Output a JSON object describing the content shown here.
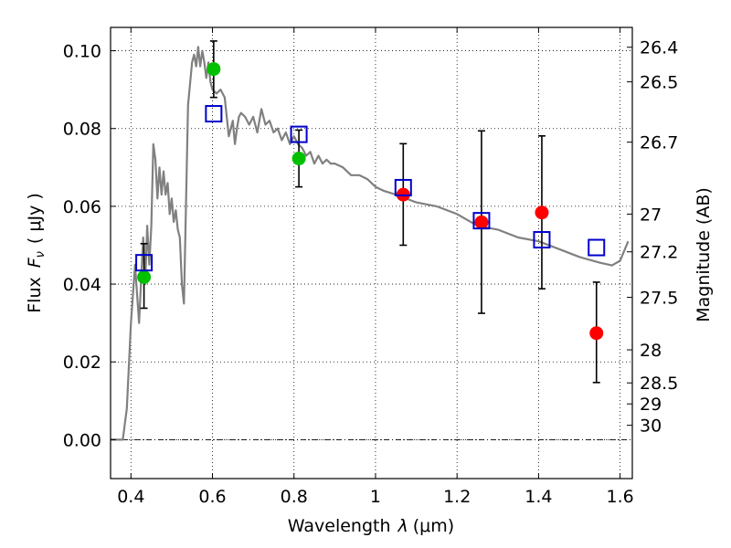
{
  "chart_data": {
    "type": "scatter",
    "xlabel": "Wavelength",
    "xlabel_symbol": "λ",
    "xlabel_unit": "(μm)",
    "ylabel": "Flux",
    "ylabel_symbol": "F",
    "ylabel_subscript": "ν",
    "ylabel_unit": "( μJy )",
    "y2label": "Magnitude (AB)",
    "xlim": [
      0.35,
      1.63
    ],
    "ylim": [
      -0.01,
      0.106
    ],
    "grid": true,
    "x_ticks": [
      0.4,
      0.6,
      0.8,
      1.0,
      1.2,
      1.4,
      1.6
    ],
    "x_tick_labels": [
      "0.4",
      "0.6",
      "0.8",
      "1",
      "1.2",
      "1.4",
      "1.6"
    ],
    "y_ticks": [
      0.0,
      0.02,
      0.04,
      0.06,
      0.08,
      0.1
    ],
    "y_tick_labels": [
      "0.00",
      "0.02",
      "0.04",
      "0.06",
      "0.08",
      "0.10"
    ],
    "y2_ticks": [
      {
        "label": "26.4",
        "flux": 0.1009
      },
      {
        "label": "26.5",
        "flux": 0.092
      },
      {
        "label": "26.7",
        "flux": 0.0765
      },
      {
        "label": "27",
        "flux": 0.058
      },
      {
        "label": "27.2",
        "flux": 0.0483
      },
      {
        "label": "27.5",
        "flux": 0.0366
      },
      {
        "label": "28",
        "flux": 0.0231
      },
      {
        "label": "28.5",
        "flux": 0.0146
      },
      {
        "label": "29",
        "flux": 0.0092
      },
      {
        "label": "30",
        "flux": 0.0037
      }
    ],
    "zero_line": 0.0,
    "model_spectrum": {
      "color": "#808080",
      "x": [
        0.35,
        0.38,
        0.39,
        0.4,
        0.41,
        0.42,
        0.43,
        0.435,
        0.44,
        0.445,
        0.45,
        0.455,
        0.46,
        0.465,
        0.47,
        0.475,
        0.48,
        0.485,
        0.49,
        0.495,
        0.5,
        0.505,
        0.51,
        0.515,
        0.52,
        0.525,
        0.53,
        0.54,
        0.55,
        0.555,
        0.56,
        0.565,
        0.57,
        0.575,
        0.58,
        0.585,
        0.59,
        0.595,
        0.6,
        0.61,
        0.62,
        0.63,
        0.64,
        0.65,
        0.655,
        0.66,
        0.665,
        0.67,
        0.68,
        0.69,
        0.7,
        0.71,
        0.72,
        0.73,
        0.74,
        0.75,
        0.76,
        0.77,
        0.78,
        0.79,
        0.8,
        0.81,
        0.82,
        0.83,
        0.84,
        0.85,
        0.86,
        0.87,
        0.88,
        0.89,
        0.9,
        0.92,
        0.94,
        0.96,
        0.98,
        1.0,
        1.02,
        1.05,
        1.1,
        1.15,
        1.2,
        1.25,
        1.3,
        1.35,
        1.4,
        1.45,
        1.5,
        1.55,
        1.58,
        1.6,
        1.62
      ],
      "y": [
        0.0,
        0.0,
        0.008,
        0.03,
        0.045,
        0.03,
        0.052,
        0.04,
        0.055,
        0.045,
        0.055,
        0.076,
        0.072,
        0.062,
        0.07,
        0.063,
        0.069,
        0.063,
        0.066,
        0.058,
        0.062,
        0.056,
        0.059,
        0.054,
        0.052,
        0.04,
        0.035,
        0.086,
        0.097,
        0.099,
        0.096,
        0.101,
        0.096,
        0.1,
        0.097,
        0.093,
        0.097,
        0.092,
        0.09,
        0.089,
        0.09,
        0.088,
        0.078,
        0.082,
        0.076,
        0.08,
        0.083,
        0.084,
        0.083,
        0.081,
        0.083,
        0.079,
        0.085,
        0.081,
        0.082,
        0.079,
        0.08,
        0.077,
        0.079,
        0.076,
        0.078,
        0.076,
        0.075,
        0.073,
        0.074,
        0.071,
        0.073,
        0.071,
        0.072,
        0.071,
        0.071,
        0.07,
        0.068,
        0.068,
        0.067,
        0.065,
        0.064,
        0.063,
        0.061,
        0.06,
        0.058,
        0.055,
        0.054,
        0.052,
        0.051,
        0.049,
        0.047,
        0.0455,
        0.0448,
        0.046,
        0.051
      ]
    },
    "series": [
      {
        "name": "",
        "marker": "circle",
        "color": "#00c000",
        "x": [
          0.432,
          0.603,
          0.812
        ],
        "y": [
          0.0418,
          0.0953,
          0.0723
        ],
        "yerr_low": [
          0.0338,
          0.088,
          0.065
        ],
        "yerr_high": [
          0.0504,
          0.1025,
          0.0796
        ]
      },
      {
        "name": "",
        "marker": "circle",
        "color": "#ff0000",
        "x": [
          1.068,
          1.26,
          1.408,
          1.542
        ],
        "y": [
          0.063,
          0.0559,
          0.0584,
          0.0274
        ],
        "yerr_low": [
          0.05,
          0.0325,
          0.0388,
          0.0147
        ],
        "yerr_high": [
          0.0761,
          0.0794,
          0.0781,
          0.0405
        ]
      },
      {
        "name": "",
        "marker": "square-open",
        "color": "#0000cc",
        "x": [
          0.432,
          0.603,
          0.812,
          1.068,
          1.26,
          1.408,
          1.542
        ],
        "y": [
          0.0455,
          0.0838,
          0.0785,
          0.0648,
          0.0563,
          0.0514,
          0.0494
        ]
      }
    ]
  }
}
